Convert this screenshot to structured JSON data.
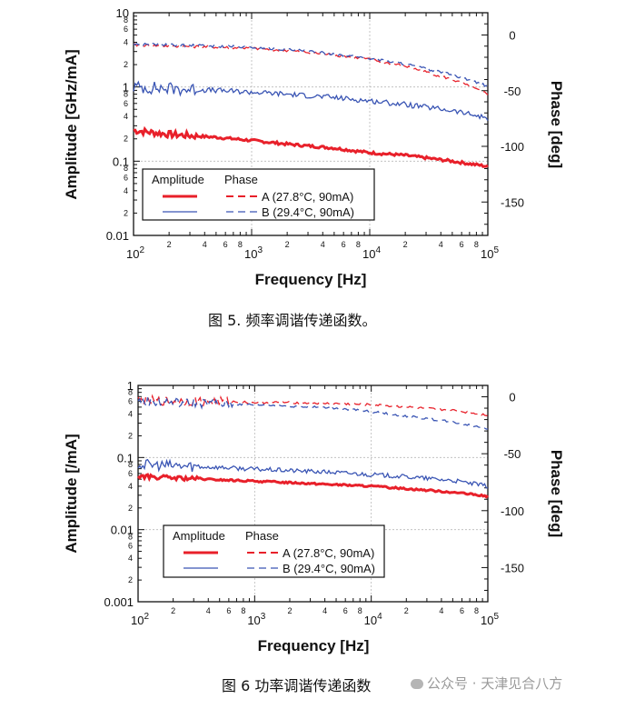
{
  "chart_data": [
    {
      "type": "line",
      "title": "",
      "xlabel": "Frequency [Hz]",
      "ylabel": "Amplitude [GHz/mA]",
      "y2label": "Phase [deg]",
      "xscale": "log",
      "yscale": "log",
      "xlim": [
        100,
        100000
      ],
      "ylim": [
        0.01,
        10
      ],
      "y2lim": [
        -180,
        20
      ],
      "x_ticks": [
        "10^2",
        "10^3",
        "10^4",
        "10^5"
      ],
      "y_ticks": [
        "10",
        "1",
        "0.1",
        "0.01"
      ],
      "y2_ticks": [
        "0",
        "-50",
        "-100",
        "-150"
      ],
      "minor_tick_labels": [
        "2",
        "4",
        "6",
        "8"
      ],
      "grid": true,
      "legend_title_amplitude": "Amplitude",
      "legend_title_phase": "Phase",
      "legend_position": "lower-left",
      "series": [
        {
          "name": "A (27.8°C, 90mA)",
          "quantity": "amplitude",
          "color": "#e8202a",
          "x": [
            100,
            200,
            500,
            1000,
            2000,
            5000,
            10000,
            20000,
            50000,
            100000
          ],
          "values": [
            0.26,
            0.23,
            0.21,
            0.19,
            0.17,
            0.15,
            0.13,
            0.12,
            0.1,
            0.085
          ]
        },
        {
          "name": "B (29.4°C, 90mA)",
          "quantity": "amplitude",
          "color": "#3a55b4",
          "x": [
            100,
            200,
            500,
            1000,
            2000,
            5000,
            10000,
            20000,
            50000,
            100000
          ],
          "values": [
            1.0,
            0.95,
            0.9,
            0.85,
            0.8,
            0.72,
            0.65,
            0.58,
            0.48,
            0.38
          ]
        },
        {
          "name": "A (27.8°C, 90mA)",
          "quantity": "phase",
          "color": "#e8202a",
          "x": [
            100,
            200,
            500,
            1000,
            2000,
            5000,
            10000,
            20000,
            50000,
            100000
          ],
          "values": [
            -9,
            -10,
            -11,
            -12,
            -14,
            -18,
            -22,
            -28,
            -40,
            -53
          ]
        },
        {
          "name": "B (29.4°C, 90mA)",
          "quantity": "phase",
          "color": "#3a55b4",
          "x": [
            100,
            200,
            500,
            1000,
            2000,
            5000,
            10000,
            20000,
            50000,
            100000
          ],
          "values": [
            -8,
            -9,
            -10,
            -11,
            -13,
            -17,
            -21,
            -26,
            -36,
            -46
          ]
        }
      ]
    },
    {
      "type": "line",
      "title": "",
      "xlabel": "Frequency [Hz]",
      "ylabel": "Amplitude [/mA]",
      "y2label": "Phase [deg]",
      "xscale": "log",
      "yscale": "log",
      "xlim": [
        100,
        100000
      ],
      "ylim": [
        0.001,
        1
      ],
      "y2lim": [
        -180,
        10
      ],
      "x_ticks": [
        "10^2",
        "10^3",
        "10^4",
        "10^5"
      ],
      "y_ticks": [
        "1",
        "0.1",
        "0.01",
        "0.001"
      ],
      "y2_ticks": [
        "0",
        "-50",
        "-100",
        "-150"
      ],
      "minor_tick_labels": [
        "2",
        "4",
        "6",
        "8"
      ],
      "grid": true,
      "legend_title_amplitude": "Amplitude",
      "legend_title_phase": "Phase",
      "legend_position": "lower-left",
      "series": [
        {
          "name": "A (27.8°C, 90mA)",
          "quantity": "amplitude",
          "color": "#e8202a",
          "x": [
            100,
            200,
            500,
            1000,
            2000,
            5000,
            10000,
            20000,
            50000,
            100000
          ],
          "values": [
            0.055,
            0.052,
            0.049,
            0.047,
            0.045,
            0.042,
            0.04,
            0.037,
            0.033,
            0.029
          ]
        },
        {
          "name": "B (29.4°C, 90mA)",
          "quantity": "amplitude",
          "color": "#3a55b4",
          "x": [
            100,
            200,
            500,
            1000,
            2000,
            5000,
            10000,
            20000,
            50000,
            100000
          ],
          "values": [
            0.08,
            0.077,
            0.073,
            0.069,
            0.066,
            0.062,
            0.058,
            0.054,
            0.048,
            0.04
          ]
        },
        {
          "name": "A (27.8°C, 90mA)",
          "quantity": "phase",
          "color": "#e8202a",
          "x": [
            100,
            200,
            500,
            1000,
            2000,
            5000,
            10000,
            20000,
            50000,
            100000
          ],
          "values": [
            -3,
            -4,
            -4,
            -5,
            -5,
            -6,
            -7,
            -9,
            -12,
            -16
          ]
        },
        {
          "name": "B (29.4°C, 90mA)",
          "quantity": "phase",
          "color": "#3a55b4",
          "x": [
            100,
            200,
            500,
            1000,
            2000,
            5000,
            10000,
            20000,
            50000,
            100000
          ],
          "values": [
            -4,
            -5,
            -6,
            -7,
            -8,
            -10,
            -13,
            -17,
            -22,
            -28
          ]
        }
      ]
    }
  ],
  "captions": {
    "fig5": "图 5. 频率调谐传递函数。",
    "fig6": "图 6 功率调谐传递函数"
  },
  "watermark": "公众号 · 天津见合八方"
}
